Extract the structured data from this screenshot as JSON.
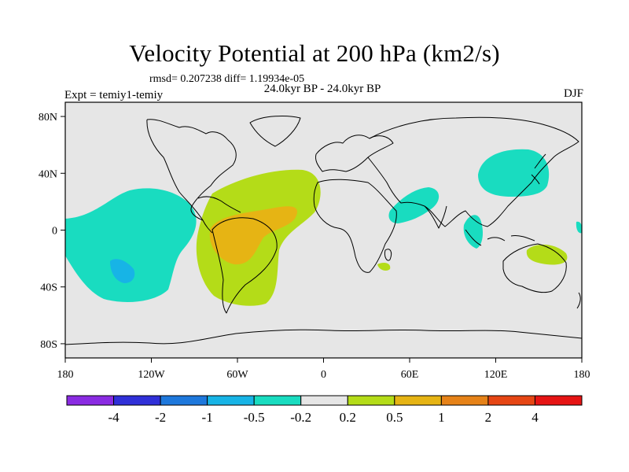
{
  "header": {
    "title": "Velocity Potential at 200 hPa (km2/s)",
    "stats": "rmsd= 0.207238 diff= 1.19934e-05",
    "period": "24.0kyr BP - 24.0kyr BP",
    "experiment": "Expt = temiy1-temiy",
    "season": "DJF"
  },
  "axes": {
    "lat_labels": [
      "80N",
      "40N",
      "0",
      "40S",
      "80S"
    ],
    "lon_labels": [
      "180",
      "120W",
      "60W",
      "0",
      "60E",
      "120E",
      "180"
    ]
  },
  "colorbar": {
    "colors": [
      "#8a2be2",
      "#3030d8",
      "#1e78dc",
      "#17b4e6",
      "#19dcc0",
      "#e6e6e6",
      "#b4dc18",
      "#e6b414",
      "#e68218",
      "#e64614",
      "#e61414"
    ],
    "labels": [
      "-4",
      "-2",
      "-1",
      "-0.5",
      "-0.2",
      "0.2",
      "0.5",
      "1",
      "2",
      "4"
    ]
  },
  "field": {
    "background": "#e6e6e6",
    "negative_color": "#19dcc0",
    "negative_strong_color": "#17b4e6",
    "positive_color": "#b4dc18",
    "positive_strong_color": "#e6b414"
  }
}
